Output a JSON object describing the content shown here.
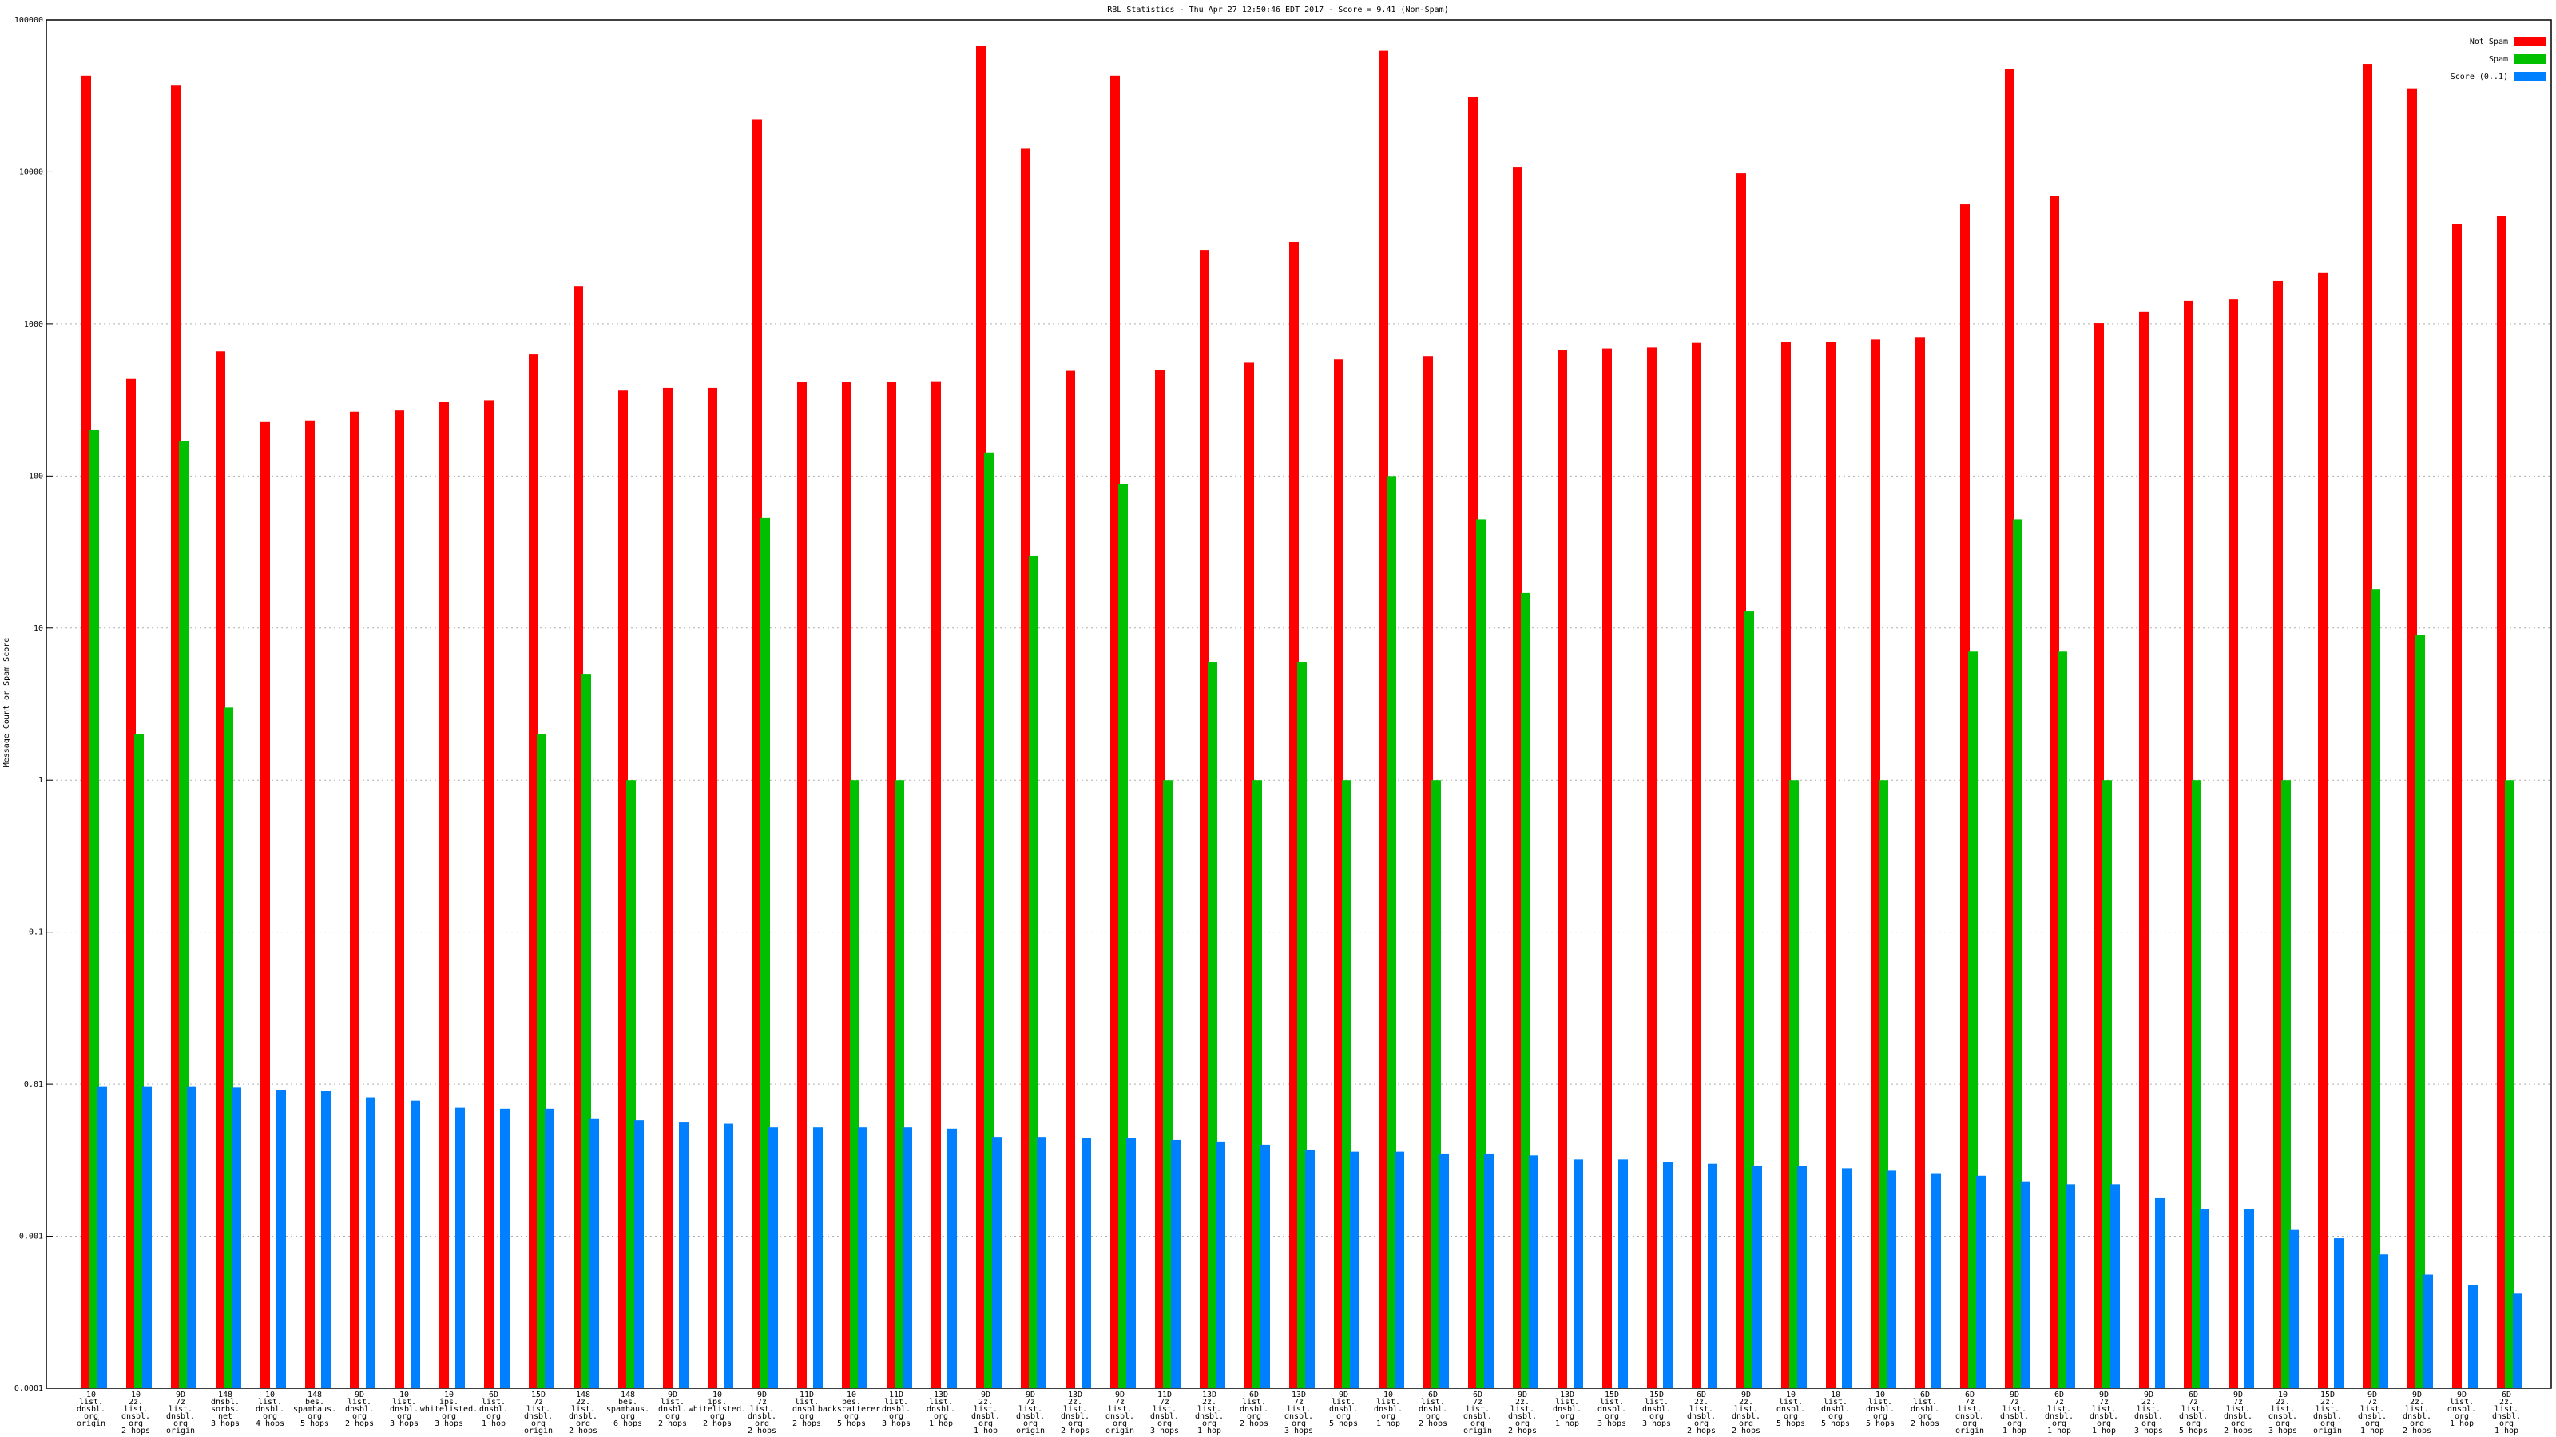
{
  "chart_data": {
    "type": "bar",
    "title": "RBL Statistics - Thu Apr 27 12:50:46 EDT 2017 - Score = 9.41 (Non-Spam)",
    "y_label": "Message Count or Spam Score",
    "log_y": true,
    "grid": true,
    "legend": "top-right",
    "ylim": [
      0.0001,
      100000
    ],
    "yticks": [
      0.0001,
      0.001,
      0.01,
      0.1,
      1,
      10,
      100,
      1000,
      10000,
      100000
    ],
    "categories": [
      "10\nlist.\ndnsbl.\norg\norigin",
      "10\n2z.\nlist.\ndnsbl.\norg\n2 hops",
      "9D\n7z\nlist.\ndnsbl.\norg\norigin",
      "148\ndnsbl.\nsorbs.\nnet\n3 hops",
      "10\nlist.\ndnsbl.\norg\n4 hops",
      "148\nbes.\nspamhaus.\norg\n5 hops",
      "9D\nlist.\ndnsbl.\norg\n2 hops",
      "10\nlist.\ndnsbl.\norg\n3 hops",
      "10\nips.\nwhitelisted.\norg\n3 hops",
      "6D\nlist.\ndnsbl.\norg\n1 hop",
      "15D\n7z\nlist.\ndnsbl.\norg\norigin",
      "148\n2z.\nlist.\ndnsbl.\norg\n2 hops",
      "148\nbes.\nspamhaus.\norg\n6 hops",
      "9D\nlist.\ndnsbl.\norg\n2 hops",
      "10\nips.\nwhitelisted.\norg\n2 hops",
      "9D\n7z\nlist.\ndnsbl.\norg\n2 hops",
      "11D\nlist.\ndnsbl.\norg\n2 hops",
      "10\nbes.\nbackscatterer.\norg\n5 hops",
      "11D\nlist.\ndnsbl.\norg\n3 hops",
      "13D\nlist.\ndnsbl.\norg\n1 hop",
      "9D\n2z.\nlist.\ndnsbl.\norg\n1 hop",
      "9D\n7z\nlist.\ndnsbl.\norg\norigin",
      "13D\n2z.\nlist.\ndnsbl.\norg\n2 hops",
      "9D\n7z\nlist.\ndnsbl.\norg\norigin",
      "11D\n7z\nlist.\ndnsbl.\norg\n3 hops",
      "13D\n2z.\nlist.\ndnsbl.\norg\n1 hop",
      "6D\nlist.\ndnsbl.\norg\n2 hops",
      "13D\n7z\nlist.\ndnsbl.\norg\n3 hops",
      "9D\nlist.\ndnsbl.\norg\n5 hops",
      "10\nlist.\ndnsbl.\norg\n1 hop",
      "6D\nlist.\ndnsbl.\norg\n2 hops",
      "6D\n7z\nlist.\ndnsbl.\norg\norigin",
      "9D\n2z.\nlist.\ndnsbl.\norg\n2 hops",
      "13D\nlist.\ndnsbl.\norg\n1 hop",
      "15D\nlist.\ndnsbl.\norg\n3 hops",
      "15D\nlist.\ndnsbl.\norg\n3 hops",
      "6D\n2z.\nlist.\ndnsbl.\norg\n2 hops",
      "9D\n2z.\nlist.\ndnsbl.\norg\n2 hops",
      "10\nlist.\ndnsbl.\norg\n5 hops",
      "10\nlist.\ndnsbl.\norg\n5 hops",
      "10\nlist.\ndnsbl.\norg\n5 hops",
      "6D\nlist.\ndnsbl.\norg\n2 hops",
      "6D\n7z\nlist.\ndnsbl.\norg\norigin",
      "9D\n7z\nlist.\ndnsbl.\norg\n1 hop",
      "6D\n7z\nlist.\ndnsbl.\norg\n1 hop",
      "9D\n7z\nlist.\ndnsbl.\norg\n1 hop",
      "9D\n2z.\nlist.\ndnsbl.\norg\n3 hops",
      "6D\n7z\nlist.\ndnsbl.\norg\n5 hops",
      "9D\n7z\nlist.\ndnsbl.\norg\n2 hops",
      "10\n2z.\nlist.\ndnsbl.\norg\n3 hops",
      "15D\n2z.\nlist.\ndnsbl.\norg\norigin",
      "9D\n7z\nlist.\ndnsbl.\norg\n1 hop",
      "9D\n2z.\nlist.\ndnsbl.\norg\n2 hops",
      "9D\nlist.\ndnsbl.\norg\n1 hop",
      "6D\n2z.\nlist.\ndnsbl.\norg\n1 hop"
    ],
    "series": [
      {
        "name": "Not Spam",
        "color": "#ff0000",
        "values": [
          43000,
          435,
          37000,
          660,
          229,
          232,
          265,
          270,
          307,
          315,
          630,
          1780,
          365,
          380,
          380,
          22200,
          414,
          414,
          414,
          420,
          67500,
          14200,
          492,
          43000,
          500,
          3070,
          556,
          3470,
          585,
          62700,
          614,
          31300,
          10800,
          678,
          690,
          700,
          750,
          9800,
          765,
          765,
          790,
          820,
          6120,
          47700,
          6930,
          1010,
          1200,
          1420,
          1450,
          1920,
          2170,
          51400,
          35500,
          4550,
          5150
        ]
      },
      {
        "name": "Spam",
        "color": "#00c000",
        "values": [
          200,
          2,
          170,
          3,
          null,
          null,
          null,
          null,
          null,
          null,
          2,
          5,
          1,
          null,
          null,
          53,
          null,
          1,
          1,
          null,
          143,
          30,
          null,
          89,
          1,
          6,
          1,
          6,
          1,
          100,
          1,
          52,
          17,
          null,
          null,
          null,
          null,
          13,
          1,
          null,
          1,
          null,
          7,
          52,
          7,
          1,
          null,
          1,
          null,
          1,
          null,
          18,
          9,
          null,
          1
        ]
      },
      {
        "name": "Score (0..1)",
        "color": "#0080ff",
        "values": [
          0.0097,
          0.0097,
          0.0097,
          0.0095,
          0.0092,
          0.009,
          0.0082,
          0.0078,
          0.007,
          0.0069,
          0.0069,
          0.0059,
          0.0058,
          0.0056,
          0.0055,
          0.0052,
          0.0052,
          0.0052,
          0.0052,
          0.0051,
          0.0045,
          0.0045,
          0.0044,
          0.0044,
          0.0043,
          0.0042,
          0.004,
          0.0037,
          0.0036,
          0.0036,
          0.0035,
          0.0035,
          0.0034,
          0.0032,
          0.0032,
          0.0031,
          0.003,
          0.0029,
          0.0029,
          0.0028,
          0.0027,
          0.0026,
          0.0025,
          0.0023,
          0.0022,
          0.0022,
          0.0018,
          0.0015,
          0.0015,
          0.0011,
          0.00097,
          0.00076,
          0.00056,
          0.00048,
          0.00042
        ]
      }
    ]
  }
}
